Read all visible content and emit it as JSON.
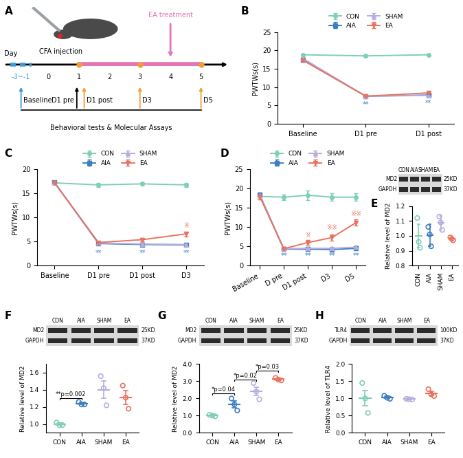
{
  "diagram": {
    "panel_label": "A",
    "top_labels": [
      "CFA injection",
      "EA treatment"
    ],
    "axis_label": "Day",
    "days": [
      "-3~-1",
      "0",
      "1",
      "2",
      "3",
      "4",
      "5"
    ],
    "timepoints": [
      "Baseline",
      "D1 pre",
      "D1 post",
      "D3",
      "D5"
    ],
    "caption": "Behavioral tests & Molecular Assays"
  },
  "chart_data": [
    {
      "panel_label": "B",
      "type": "line",
      "y_label": "PWTWs(s)",
      "legend": "top",
      "categories": [
        "Baseline",
        "D1 pre",
        "D1 post"
      ],
      "ylim": [
        0,
        25
      ],
      "yticks": [
        0,
        5,
        10,
        15,
        20,
        25
      ],
      "series": [
        {
          "name": "CON",
          "color": "#7fcfb3",
          "marker": "circle",
          "values": [
            18.8,
            18.5,
            18.8
          ],
          "errors": [
            0.3,
            0.3,
            0.3
          ]
        },
        {
          "name": "AIA",
          "color": "#3d7fc1",
          "marker": "square",
          "values": [
            17.5,
            7.5,
            7.8
          ],
          "errors": [
            0.4,
            0.3,
            0.3
          ]
        },
        {
          "name": "SHAM",
          "color": "#b6addf",
          "marker": "triangle_up",
          "values": [
            17.8,
            7.5,
            7.7
          ],
          "errors": [
            0.4,
            0.3,
            0.3
          ]
        },
        {
          "name": "EA",
          "color": "#e9735e",
          "marker": "triangle_down",
          "values": [
            17.3,
            7.5,
            8.4
          ],
          "errors": [
            0.3,
            0.3,
            0.4
          ]
        }
      ],
      "annotations": [
        {
          "text": "**",
          "category": "D1 pre",
          "y": 5.3,
          "series": "AIA"
        },
        {
          "text": "**",
          "category": "D1 post",
          "y": 5.6,
          "series": "AIA"
        }
      ]
    },
    {
      "panel_label": "C",
      "type": "line",
      "y_label": "PWTWs(s)",
      "legend": "top",
      "categories": [
        "Baseline",
        "D1 pre",
        "D1 post",
        "D3"
      ],
      "ylim": [
        0,
        20
      ],
      "yticks": [
        0,
        5,
        10,
        15,
        20
      ],
      "series": [
        {
          "name": "CON",
          "color": "#7fcfb3",
          "marker": "circle",
          "values": [
            17.2,
            16.8,
            17.0,
            16.8
          ],
          "errors": [
            0.3,
            0.4,
            0.4,
            0.4
          ]
        },
        {
          "name": "AIA",
          "color": "#3d7fc1",
          "marker": "square",
          "values": [
            17.3,
            4.6,
            4.4,
            4.3
          ],
          "errors": [
            0.3,
            0.3,
            0.3,
            0.3
          ]
        },
        {
          "name": "SHAM",
          "color": "#b6addf",
          "marker": "triangle_up",
          "values": [
            17.3,
            4.7,
            4.5,
            4.4
          ],
          "errors": [
            0.3,
            0.3,
            0.3,
            0.3
          ]
        },
        {
          "name": "EA",
          "color": "#e9735e",
          "marker": "triangle_down",
          "values": [
            17.2,
            4.8,
            5.4,
            6.6
          ],
          "errors": [
            0.3,
            0.3,
            0.4,
            0.5
          ]
        }
      ],
      "annotations": [
        {
          "text": "**",
          "category": "D1 pre",
          "y": 2.6,
          "series": "AIA"
        },
        {
          "text": "**",
          "category": "D1 post",
          "y": 2.6,
          "series": "AIA"
        },
        {
          "text": "**",
          "category": "D3",
          "y": 2.6,
          "series": "AIA"
        },
        {
          "text": "※",
          "category": "D3",
          "y": 8.4,
          "series": "EA"
        }
      ]
    },
    {
      "panel_label": "D",
      "type": "line",
      "y_label": "PWTWs(s)",
      "legend": "top",
      "categories": [
        "Baseline",
        "D pre",
        "D1 post",
        "D3",
        "D5"
      ],
      "ylim": [
        0,
        25
      ],
      "yticks": [
        0,
        5,
        10,
        15,
        20,
        25
      ],
      "series": [
        {
          "name": "CON",
          "color": "#7fcfb3",
          "marker": "circle",
          "values": [
            18.0,
            17.8,
            18.3,
            17.8,
            17.8
          ],
          "errors": [
            0.8,
            0.7,
            1.2,
            1.0,
            1.0
          ]
        },
        {
          "name": "AIA",
          "color": "#3d7fc1",
          "marker": "square",
          "values": [
            18.5,
            4.3,
            4.3,
            4.2,
            4.5
          ],
          "errors": [
            0.5,
            0.3,
            0.3,
            0.4,
            0.4
          ]
        },
        {
          "name": "SHAM",
          "color": "#b6addf",
          "marker": "triangle_up",
          "values": [
            18.3,
            4.4,
            4.5,
            4.5,
            4.8
          ],
          "errors": [
            0.5,
            0.3,
            0.4,
            0.4,
            0.4
          ]
        },
        {
          "name": "EA",
          "color": "#e9735e",
          "marker": "triangle_down",
          "values": [
            18.0,
            4.4,
            6.0,
            7.3,
            11.2
          ],
          "errors": [
            0.8,
            0.4,
            0.6,
            0.8,
            0.8
          ]
        }
      ],
      "annotations": [
        {
          "text": "**",
          "category": "D pre",
          "y": 2.5,
          "series": "AIA"
        },
        {
          "text": "**",
          "category": "D1 post",
          "y": 2.5,
          "series": "AIA"
        },
        {
          "text": "**",
          "category": "D3",
          "y": 2.5,
          "series": "AIA"
        },
        {
          "text": "**",
          "category": "D5",
          "y": 2.5,
          "series": "AIA"
        },
        {
          "text": "※",
          "category": "D1 post",
          "y": 8.0,
          "series": "EA"
        },
        {
          "text": "※※",
          "category": "D3",
          "y": 9.8,
          "series": "EA"
        },
        {
          "text": "※※",
          "category": "D5",
          "y": 13.4,
          "series": "EA"
        }
      ]
    },
    {
      "panel_label": "E",
      "type": "dot",
      "y_label": "Relative level of MD2",
      "categories": [
        "CON",
        "AIA",
        "SHAM",
        "EA"
      ],
      "colors": [
        "#7fcfb3",
        "#3d7fc1",
        "#b6addf",
        "#e9735e"
      ],
      "points": [
        [
          1.12,
          0.96,
          0.92
        ],
        [
          1.06,
          1.01,
          0.93
        ],
        [
          1.13,
          1.09,
          1.04
        ],
        [
          0.99,
          0.98,
          0.97
        ]
      ],
      "means": [
        1.0,
        1.005,
        1.087,
        0.98
      ],
      "errors": [
        0.08,
        0.075,
        0.045,
        0.012
      ],
      "ylim": [
        0.8,
        1.2
      ],
      "yticks": [
        0.8,
        0.9,
        1.0,
        1.1,
        1.2
      ],
      "blot": {
        "lanes": [
          "CON",
          "AIA",
          "SHAM",
          "EA"
        ],
        "bands": [
          {
            "name": "MD2",
            "size": "25KD"
          },
          {
            "name": "GAPDH",
            "size": "37KD"
          }
        ]
      },
      "annotations": []
    },
    {
      "panel_label": "F",
      "type": "dot",
      "y_label": "Relative level of MD2",
      "categories": [
        "CON",
        "AIA",
        "SHAM",
        "EA"
      ],
      "colors": [
        "#7fcfb3",
        "#3d7fc1",
        "#b6addf",
        "#e9735e"
      ],
      "points": [
        [
          1.02,
          0.99,
          0.99
        ],
        [
          1.26,
          1.23,
          1.23
        ],
        [
          1.56,
          1.42,
          1.22
        ],
        [
          1.45,
          1.31,
          1.18
        ]
      ],
      "means": [
        1.0,
        1.24,
        1.4,
        1.31
      ],
      "errors": [
        0.012,
        0.012,
        0.1,
        0.08
      ],
      "ylim": [
        0.9,
        1.7
      ],
      "yticks": [
        1.0,
        1.2,
        1.4,
        1.6
      ],
      "blot": {
        "lanes": [
          "CON",
          "AIA",
          "SHAM",
          "EA"
        ],
        "bands": [
          {
            "name": "MD2",
            "size": "25KD"
          },
          {
            "name": "GAPDH",
            "size": "37KD"
          }
        ]
      },
      "annotations": [
        {
          "text": "**p=0.002",
          "from": "CON",
          "to": "AIA",
          "y": 1.3
        }
      ]
    },
    {
      "panel_label": "G",
      "type": "dot",
      "y_label": "Relative level of MD2",
      "categories": [
        "CON",
        "AIA",
        "SHAM",
        "EA"
      ],
      "colors": [
        "#7fcfb3",
        "#3d7fc1",
        "#b6addf",
        "#e9735e"
      ],
      "points": [
        [
          1.05,
          1.0,
          0.96
        ],
        [
          2.0,
          1.65,
          1.3
        ],
        [
          2.9,
          2.4,
          1.95
        ],
        [
          3.2,
          3.1,
          3.05
        ]
      ],
      "means": [
        1.0,
        1.65,
        2.42,
        3.12
      ],
      "errors": [
        0.04,
        0.2,
        0.25,
        0.05
      ],
      "ylim": [
        0.0,
        4.0
      ],
      "yticks": [
        0.0,
        1.0,
        2.0,
        3.0,
        4.0
      ],
      "blot": {
        "lanes": [
          "CON",
          "AIA",
          "SHAM",
          "EA"
        ],
        "bands": [
          {
            "name": "MD2",
            "size": "25KD"
          },
          {
            "name": "GAPDH",
            "size": "37KD"
          }
        ]
      },
      "annotations": [
        {
          "text": "*p=0.04",
          "from": "CON",
          "to": "AIA",
          "y": 2.3
        },
        {
          "text": "*p=0.02",
          "from": "AIA",
          "to": "SHAM",
          "y": 3.1
        },
        {
          "text": "*p=0.03",
          "from": "SHAM",
          "to": "EA",
          "y": 3.6
        }
      ]
    },
    {
      "panel_label": "H",
      "type": "dot",
      "y_label": "Relative level of TLR4",
      "categories": [
        "CON",
        "AIA",
        "SHAM",
        "EA"
      ],
      "colors": [
        "#7fcfb3",
        "#3d7fc1",
        "#b6addf",
        "#e9735e"
      ],
      "points": [
        [
          1.45,
          1.0,
          0.58
        ],
        [
          1.08,
          1.02,
          0.99
        ],
        [
          0.99,
          0.98,
          0.97
        ],
        [
          1.27,
          1.12,
          1.07
        ]
      ],
      "means": [
        1.0,
        1.03,
        0.98,
        1.15
      ],
      "errors": [
        0.22,
        0.03,
        0.01,
        0.06
      ],
      "ylim": [
        0.0,
        2.0
      ],
      "yticks": [
        0.0,
        0.5,
        1.0,
        1.5,
        2.0
      ],
      "blot": {
        "lanes": [
          "CON",
          "AIA",
          "SHAM",
          "EA"
        ],
        "bands": [
          {
            "name": "TLR4",
            "size": "100KD"
          },
          {
            "name": "GAPDH",
            "size": "37KD"
          }
        ]
      },
      "annotations": []
    }
  ]
}
